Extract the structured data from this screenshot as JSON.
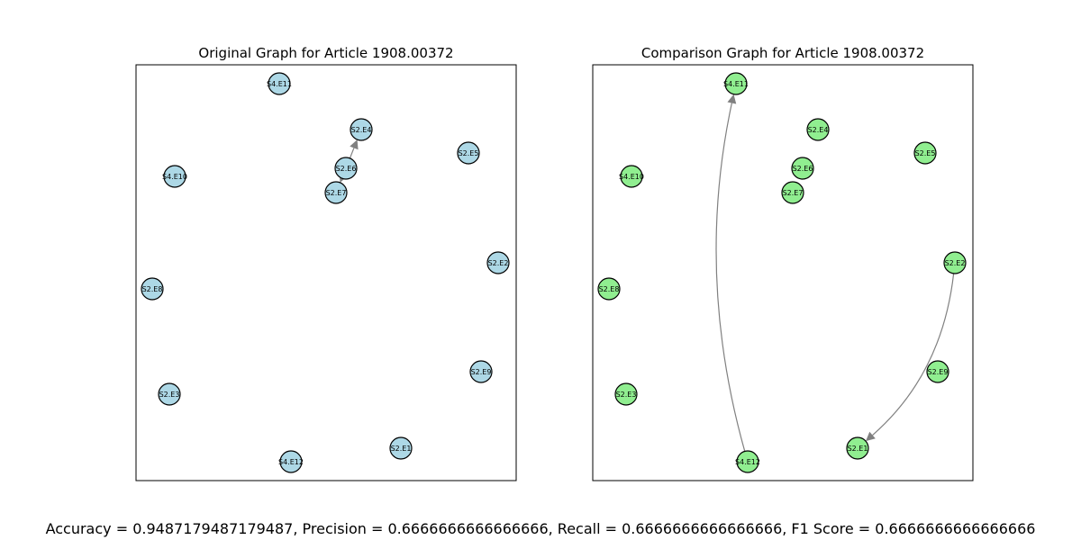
{
  "panels": [
    {
      "title": "Original Graph for Article 1908.00372",
      "node_color": "#add8e6",
      "nodes": [
        {
          "id": "S4.E11"
        },
        {
          "id": "S2.E4"
        },
        {
          "id": "S2.E5"
        },
        {
          "id": "S2.E6"
        },
        {
          "id": "S4.E10"
        },
        {
          "id": "S2.E7"
        },
        {
          "id": "S2.E2"
        },
        {
          "id": "S2.E8"
        },
        {
          "id": "S2.E9"
        },
        {
          "id": "S2.E3"
        },
        {
          "id": "S2.E1"
        },
        {
          "id": "S4.E12"
        }
      ],
      "edges": [
        {
          "source": "S2.E6",
          "target": "S2.E4"
        },
        {
          "source": "S2.E6",
          "target": "S2.E7"
        }
      ]
    },
    {
      "title": "Comparison Graph for Article 1908.00372",
      "node_color": "#90ee90",
      "nodes": [
        {
          "id": "S4.E11"
        },
        {
          "id": "S2.E4"
        },
        {
          "id": "S2.E5"
        },
        {
          "id": "S2.E6"
        },
        {
          "id": "S4.E10"
        },
        {
          "id": "S2.E7"
        },
        {
          "id": "S2.E2"
        },
        {
          "id": "S2.E8"
        },
        {
          "id": "S2.E9"
        },
        {
          "id": "S2.E3"
        },
        {
          "id": "S2.E1"
        },
        {
          "id": "S4.E12"
        }
      ],
      "edges": [
        {
          "source": "S4.E12",
          "target": "S4.E11"
        },
        {
          "source": "S2.E2",
          "target": "S2.E1"
        }
      ]
    }
  ],
  "metrics": "Accuracy = 0.9487179487179487, Precision = 0.6666666666666666, Recall = 0.6666666666666666, F1 Score = 0.6666666666666666",
  "edge_color": "#808080"
}
